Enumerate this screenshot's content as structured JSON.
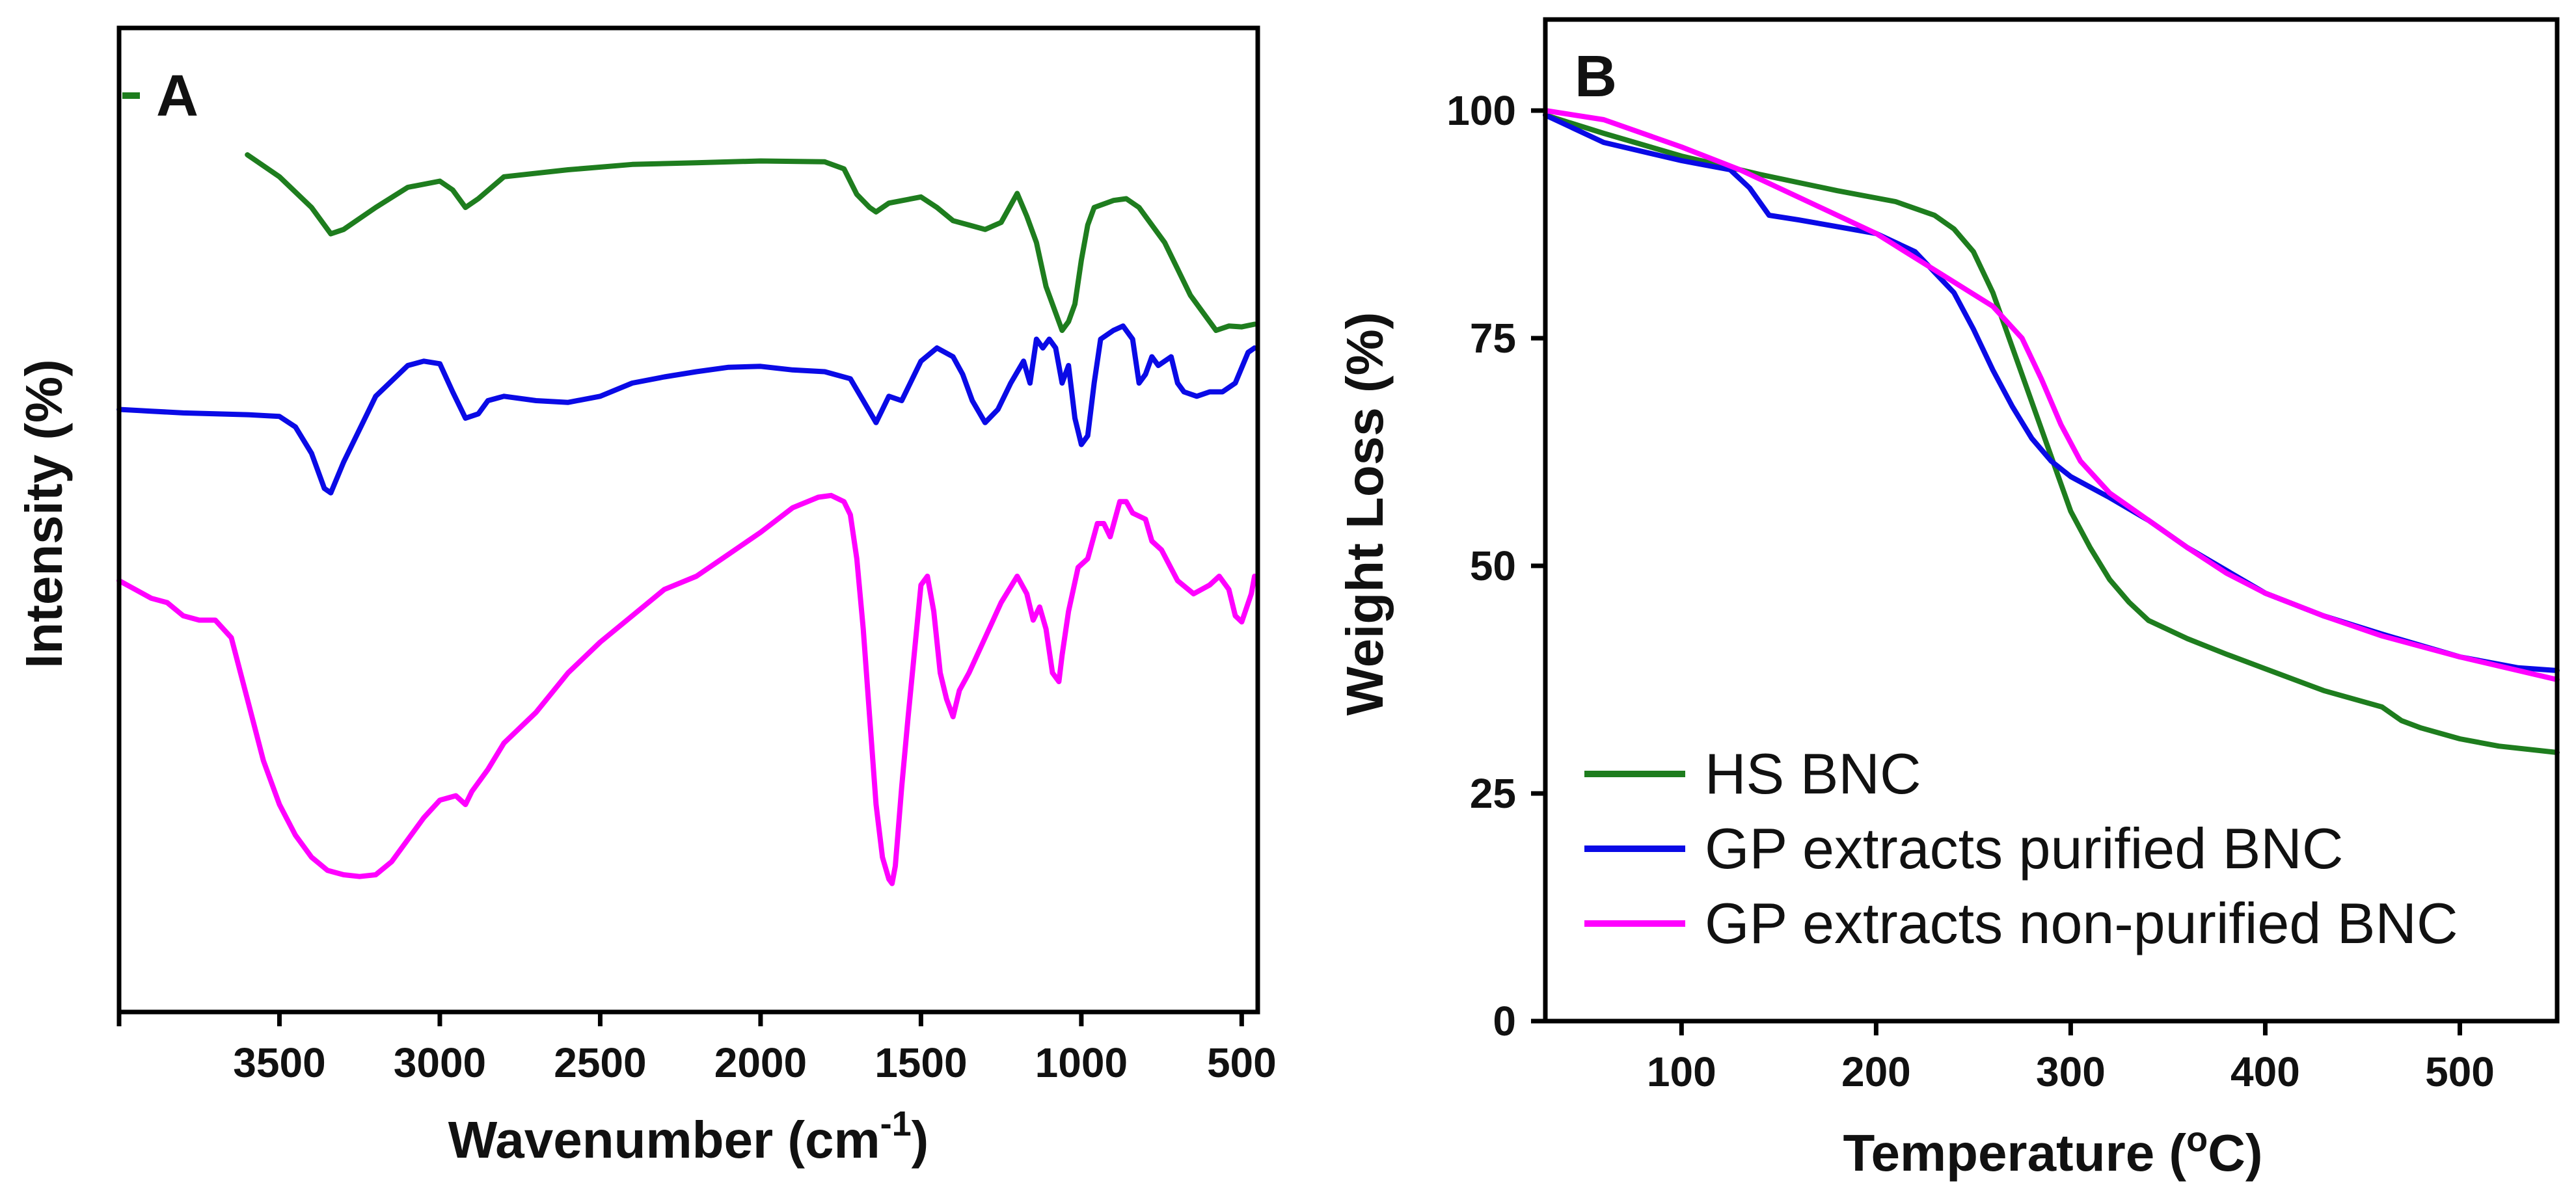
{
  "chart_data": [
    {
      "panel": "A",
      "type": "line",
      "xlabel": "Wavenumber (cm",
      "xlabel_sup": "-1",
      "xlabel_close": ")",
      "ylabel": "Intensity (%)",
      "xlim": [
        4000,
        450
      ],
      "x_reversed": true,
      "xticks": [
        3500,
        3000,
        2500,
        2000,
        1500,
        1000,
        500
      ],
      "y_ticks_shown": false,
      "ylim": [
        0,
        100
      ],
      "series": [
        {
          "name": "HS BNC",
          "color": "#1e7d1e",
          "x": [
            3600,
            3500,
            3400,
            3340,
            3300,
            3200,
            3100,
            3000,
            2960,
            2920,
            2880,
            2800,
            2600,
            2400,
            2200,
            2000,
            1800,
            1740,
            1700,
            1660,
            1640,
            1600,
            1500,
            1450,
            1400,
            1350,
            1300,
            1250,
            1200,
            1170,
            1140,
            1110,
            1080,
            1060,
            1040,
            1020,
            1000,
            980,
            960,
            900,
            860,
            820,
            780,
            740,
            700,
            660,
            620,
            580,
            540,
            500,
            460
          ],
          "y": [
            90,
            87.5,
            84,
            81,
            81.5,
            84,
            86.3,
            87,
            86,
            84,
            85,
            87.5,
            88.3,
            88.9,
            89.1,
            89.3,
            89.2,
            88.4,
            85.5,
            84,
            83.5,
            84.5,
            85.2,
            84,
            82.5,
            82,
            81.5,
            82.3,
            85.6,
            83,
            80,
            75,
            72,
            70,
            71,
            73,
            78,
            82,
            84,
            84.8,
            85,
            84,
            82,
            80,
            77,
            74,
            72,
            70,
            70.5,
            70.4,
            70.7
          ]
        },
        {
          "name": "GP extracts purified BNC",
          "color": "#0a0ae6",
          "x": [
            4000,
            3900,
            3800,
            3700,
            3600,
            3500,
            3450,
            3400,
            3360,
            3340,
            3300,
            3200,
            3100,
            3050,
            3000,
            2960,
            2920,
            2880,
            2850,
            2800,
            2700,
            2600,
            2500,
            2400,
            2300,
            2200,
            2100,
            2000,
            1900,
            1800,
            1720,
            1680,
            1640,
            1600,
            1560,
            1500,
            1450,
            1400,
            1370,
            1340,
            1300,
            1260,
            1220,
            1180,
            1160,
            1140,
            1120,
            1100,
            1080,
            1060,
            1040,
            1020,
            1000,
            980,
            960,
            940,
            900,
            870,
            840,
            820,
            800,
            780,
            760,
            720,
            700,
            680,
            640,
            600,
            560,
            520,
            480,
            460
          ],
          "y": [
            61,
            60.8,
            60.6,
            60.5,
            60.4,
            60.2,
            59,
            56,
            52,
            51.5,
            55,
            62.5,
            66,
            66.5,
            66.2,
            63,
            60,
            60.5,
            62,
            62.5,
            62,
            61.8,
            62.5,
            64,
            64.7,
            65.3,
            65.8,
            65.9,
            65.5,
            65.3,
            64.5,
            62,
            59.5,
            62.5,
            62,
            66.5,
            68,
            67,
            65,
            62,
            59.5,
            61,
            64,
            66.5,
            64,
            69,
            68,
            69,
            68,
            64,
            66,
            60,
            57,
            58,
            64,
            69,
            70,
            70.5,
            69,
            64,
            65,
            67,
            66,
            67,
            64,
            63,
            62.5,
            63,
            63,
            64,
            67.5,
            68
          ]
        },
        {
          "name": "GP extracts non-purified BNC",
          "color": "#ff00ff",
          "x": [
            4000,
            3900,
            3850,
            3800,
            3750,
            3700,
            3650,
            3600,
            3550,
            3500,
            3450,
            3400,
            3350,
            3300,
            3250,
            3200,
            3150,
            3100,
            3050,
            3000,
            2950,
            2920,
            2900,
            2850,
            2800,
            2700,
            2600,
            2500,
            2400,
            2300,
            2200,
            2100,
            2000,
            1900,
            1820,
            1780,
            1740,
            1720,
            1700,
            1680,
            1660,
            1640,
            1620,
            1600,
            1590,
            1580,
            1560,
            1540,
            1500,
            1480,
            1460,
            1440,
            1420,
            1400,
            1380,
            1350,
            1300,
            1250,
            1200,
            1170,
            1150,
            1130,
            1110,
            1090,
            1070,
            1060,
            1040,
            1010,
            980,
            950,
            930,
            910,
            880,
            860,
            840,
            800,
            780,
            750,
            700,
            650,
            600,
            570,
            540,
            520,
            500,
            470,
            460
          ],
          "y": [
            41.5,
            39.5,
            39,
            37.5,
            37,
            37,
            35,
            28,
            21,
            16,
            12.5,
            10,
            8.5,
            8,
            7.8,
            8,
            9.5,
            12,
            14.5,
            16.5,
            17,
            16,
            17.5,
            20,
            23,
            26.5,
            31,
            34.5,
            37.5,
            40.5,
            42,
            44.5,
            47,
            49.8,
            51,
            51.2,
            50.5,
            49,
            44,
            36,
            26,
            16,
            10,
            7.5,
            7,
            9,
            18,
            26,
            41,
            42,
            38,
            31,
            28,
            26,
            29,
            31,
            35,
            39,
            42,
            40,
            37,
            38.5,
            36,
            31,
            30,
            33,
            38,
            43,
            44,
            48,
            48,
            46.5,
            50.5,
            50.5,
            49.2,
            48.5,
            46,
            45,
            41.5,
            40,
            41,
            42,
            40.5,
            37.5,
            36.8,
            40,
            42
          ]
        }
      ]
    },
    {
      "panel": "B",
      "type": "line",
      "xlabel": "Temperature (",
      "xlabel_sup": "o",
      "xlabel_close": "C)",
      "ylabel": "Weight Loss (%)",
      "xlim": [
        30,
        550
      ],
      "ylim": [
        0,
        110
      ],
      "xticks": [
        100,
        200,
        300,
        400,
        500
      ],
      "yticks": [
        0,
        25,
        50,
        75,
        100
      ],
      "legend": "bottom-left",
      "series": [
        {
          "name": "HS BNC",
          "color": "#1e7d1e",
          "x": [
            30,
            60,
            100,
            140,
            180,
            210,
            230,
            240,
            250,
            260,
            270,
            280,
            290,
            300,
            310,
            320,
            330,
            340,
            360,
            380,
            400,
            430,
            460,
            470,
            480,
            500,
            520,
            550
          ],
          "y": [
            99.5,
            97.5,
            95,
            93,
            91.2,
            90,
            88.5,
            87,
            84.5,
            80,
            74,
            68,
            62,
            56,
            52,
            48.5,
            46,
            44,
            42,
            40.3,
            38.7,
            36.3,
            34.5,
            33,
            32.2,
            31,
            30.2,
            29.5
          ]
        },
        {
          "name": "GP extracts purified BNC",
          "color": "#0a0ae6",
          "x": [
            30,
            60,
            100,
            125,
            135,
            145,
            160,
            200,
            220,
            240,
            250,
            260,
            270,
            280,
            290,
            300,
            320,
            340,
            360,
            380,
            400,
            430,
            460,
            500,
            530,
            550
          ],
          "y": [
            99.5,
            96.5,
            94.5,
            93.5,
            91.5,
            88.5,
            88,
            86.5,
            84.5,
            80,
            76,
            71.5,
            67.5,
            64,
            61.5,
            59.8,
            57.5,
            55,
            52,
            49.5,
            47,
            44.5,
            42.5,
            40,
            38.8,
            38.5
          ]
        },
        {
          "name": "GP extracts non-purified BNC",
          "color": "#ff00ff",
          "x": [
            30,
            60,
            100,
            130,
            160,
            200,
            230,
            260,
            275,
            285,
            295,
            305,
            320,
            340,
            360,
            380,
            400,
            430,
            460,
            500,
            530,
            550
          ],
          "y": [
            100,
            99,
            96,
            93.5,
            90.5,
            86.5,
            82.5,
            78.5,
            75,
            70.5,
            65.5,
            61.5,
            58,
            55,
            52,
            49.2,
            47,
            44.5,
            42.3,
            40,
            38.5,
            37.5
          ]
        }
      ]
    }
  ]
}
